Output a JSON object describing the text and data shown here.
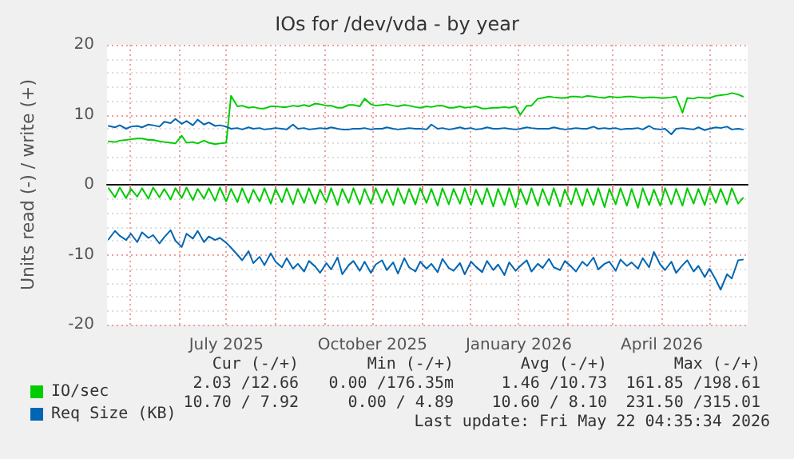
{
  "chart_data": {
    "type": "line",
    "title": "IOs for /dev/vda - by year",
    "ylabel": "Units read (-) / write (+)",
    "x": [
      "2025-04-18",
      "2025-04-22",
      "2025-04-25",
      "2025-04-29",
      "2025-05-02",
      "2025-05-06",
      "2025-05-09",
      "2025-05-13",
      "2025-05-16",
      "2025-05-20",
      "2025-05-23",
      "2025-05-27",
      "2025-05-30",
      "2025-06-03",
      "2025-06-06",
      "2025-06-10",
      "2025-06-13",
      "2025-06-17",
      "2025-06-20",
      "2025-06-24",
      "2025-06-27",
      "2025-07-01",
      "2025-07-04",
      "2025-07-08",
      "2025-07-11",
      "2025-07-15",
      "2025-07-18",
      "2025-07-22",
      "2025-07-25",
      "2025-07-29",
      "2025-08-01",
      "2025-08-05",
      "2025-08-08",
      "2025-08-12",
      "2025-08-15",
      "2025-08-19",
      "2025-08-22",
      "2025-08-26",
      "2025-08-29",
      "2025-09-02",
      "2025-09-05",
      "2025-09-09",
      "2025-09-12",
      "2025-09-16",
      "2025-09-19",
      "2025-09-23",
      "2025-09-26",
      "2025-09-30",
      "2025-10-03",
      "2025-10-07",
      "2025-10-10",
      "2025-10-14",
      "2025-10-17",
      "2025-10-21",
      "2025-10-24",
      "2025-10-28",
      "2025-10-31",
      "2025-11-04",
      "2025-11-07",
      "2025-11-11",
      "2025-11-14",
      "2025-11-18",
      "2025-11-21",
      "2025-11-25",
      "2025-11-28",
      "2025-12-02",
      "2025-12-05",
      "2025-12-09",
      "2025-12-12",
      "2025-12-16",
      "2025-12-19",
      "2025-12-23",
      "2025-12-26",
      "2025-12-30",
      "2026-01-02",
      "2026-01-06",
      "2026-01-09",
      "2026-01-13",
      "2026-01-16",
      "2026-01-20",
      "2026-01-23",
      "2026-01-27",
      "2026-01-30",
      "2026-02-03",
      "2026-02-06",
      "2026-02-10",
      "2026-02-13",
      "2026-02-17",
      "2026-02-20",
      "2026-02-24",
      "2026-02-27",
      "2026-03-03",
      "2026-03-06",
      "2026-03-10",
      "2026-03-13",
      "2026-03-17",
      "2026-03-20",
      "2026-03-24",
      "2026-03-27",
      "2026-03-31",
      "2026-04-03",
      "2026-04-07",
      "2026-04-10",
      "2026-04-14",
      "2026-04-17",
      "2026-04-21",
      "2026-04-24",
      "2026-04-28",
      "2026-05-01",
      "2026-05-05",
      "2026-05-08",
      "2026-05-12",
      "2026-05-15",
      "2026-05-19",
      "2026-05-22"
    ],
    "series": [
      {
        "color": "#00cc00",
        "values": [
          -0.5,
          -1.8,
          -0.4,
          -1.9,
          -0.6,
          -1.7,
          -0.5,
          -2.0,
          -0.4,
          -1.8,
          -0.6,
          -2.1,
          -0.5,
          -1.9,
          -0.4,
          -2.2,
          -0.6,
          -2.0,
          -0.5,
          -2.3,
          -0.4,
          -2.4,
          -0.6,
          -2.5,
          -0.5,
          -2.6,
          -0.7,
          -2.4,
          -0.5,
          -2.7,
          -0.6,
          -2.5,
          -0.5,
          -2.8,
          -0.6,
          -2.6,
          -0.5,
          -2.7,
          -0.7,
          -2.5,
          -0.5,
          -2.9,
          -0.6,
          -2.6,
          -0.5,
          -2.8,
          -0.6,
          -2.7,
          -0.5,
          -2.6,
          -0.7,
          -2.9,
          -0.5,
          -2.7,
          -0.6,
          -2.8,
          -0.5,
          -2.6,
          -0.6,
          -3.0,
          -0.5,
          -2.8,
          -0.6,
          -2.7,
          -0.5,
          -2.9,
          -0.7,
          -2.8,
          -0.5,
          -3.1,
          -0.6,
          -2.9,
          -0.5,
          -3.2,
          -0.6,
          -2.8,
          -0.5,
          -3.0,
          -0.6,
          -2.9,
          -0.5,
          -3.1,
          -0.7,
          -2.8,
          -0.5,
          -3.0,
          -0.6,
          -2.9,
          -0.5,
          -3.2,
          -0.6,
          -2.8,
          -0.5,
          -3.0,
          -0.6,
          -3.3,
          -0.5,
          -2.9,
          -0.7,
          -3.0,
          -0.5,
          -2.8,
          -0.6,
          -3.0,
          -0.5,
          -2.7,
          -0.6,
          -2.9,
          -0.5,
          -2.6,
          -0.6,
          -2.8,
          -0.5,
          -2.7,
          -1.9
        ]
      },
      {
        "name": "IO/sec",
        "color": "#00cc00",
        "values": [
          6.2,
          6.1,
          6.3,
          6.4,
          6.5,
          6.6,
          6.6,
          6.4,
          6.4,
          6.2,
          6.1,
          6.0,
          5.9,
          7.0,
          6.0,
          6.1,
          5.9,
          6.3,
          6.0,
          5.8,
          5.9,
          6.0,
          12.7,
          11.2,
          11.3,
          11.0,
          11.1,
          10.9,
          10.9,
          11.2,
          11.2,
          11.1,
          11.1,
          11.3,
          11.2,
          11.4,
          11.2,
          11.6,
          11.5,
          11.3,
          11.3,
          11.0,
          11.0,
          11.4,
          11.4,
          11.2,
          12.3,
          11.5,
          11.3,
          11.4,
          11.5,
          11.3,
          11.2,
          11.4,
          11.3,
          11.1,
          11.0,
          11.2,
          11.1,
          11.3,
          11.3,
          11.0,
          11.0,
          11.2,
          11.0,
          11.1,
          11.2,
          10.9,
          10.9,
          11.0,
          11.0,
          11.1,
          11.0,
          11.2,
          10.0,
          11.3,
          11.3,
          12.3,
          12.4,
          12.6,
          12.5,
          12.4,
          12.4,
          12.6,
          12.6,
          12.5,
          12.7,
          12.6,
          12.5,
          12.4,
          12.6,
          12.5,
          12.5,
          12.6,
          12.6,
          12.5,
          12.4,
          12.5,
          12.5,
          12.4,
          12.4,
          12.5,
          12.6,
          10.3,
          12.4,
          12.3,
          12.5,
          12.4,
          12.4,
          12.7,
          12.8,
          12.9,
          13.1,
          12.9,
          12.6
        ]
      },
      {
        "color": "#0066b3",
        "values": [
          -7.8,
          -6.6,
          -7.3,
          -7.9,
          -7.0,
          -8.2,
          -6.8,
          -7.6,
          -7.2,
          -8.4,
          -7.5,
          -6.5,
          -8.0,
          -8.9,
          -7.0,
          -7.7,
          -6.6,
          -8.2,
          -7.4,
          -7.9,
          -7.6,
          -8.3,
          -9.0,
          -10.0,
          -10.8,
          -9.5,
          -11.2,
          -10.3,
          -11.5,
          -9.8,
          -11.0,
          -11.8,
          -10.5,
          -12.0,
          -11.3,
          -12.4,
          -10.9,
          -11.7,
          -12.6,
          -11.2,
          -12.1,
          -10.4,
          -12.8,
          -11.5,
          -10.9,
          -12.3,
          -11.0,
          -12.6,
          -11.4,
          -10.8,
          -12.2,
          -11.1,
          -12.7,
          -10.5,
          -11.8,
          -12.4,
          -11.0,
          -12.0,
          -11.3,
          -12.5,
          -10.6,
          -11.9,
          -12.3,
          -11.2,
          -12.8,
          -11.0,
          -11.7,
          -12.5,
          -10.9,
          -12.2,
          -11.4,
          -12.9,
          -11.1,
          -12.3,
          -11.6,
          -10.8,
          -12.4,
          -11.3,
          -11.9,
          -10.6,
          -11.8,
          -12.2,
          -10.9,
          -11.7,
          -12.4,
          -11.0,
          -11.6,
          -10.4,
          -12.1,
          -11.3,
          -11.0,
          -12.3,
          -10.7,
          -11.6,
          -11.1,
          -12.0,
          -10.5,
          -11.8,
          -9.6,
          -11.4,
          -12.2,
          -11.0,
          -12.6,
          -11.5,
          -10.8,
          -12.4,
          -11.6,
          -13.2,
          -12.0,
          -13.6,
          -15.0,
          -12.8,
          -13.4,
          -10.8,
          -10.7
        ]
      },
      {
        "name": "Req Size (KB)",
        "color": "#0066b3",
        "values": [
          8.4,
          8.2,
          8.5,
          8.0,
          8.3,
          8.4,
          8.2,
          8.6,
          8.5,
          8.3,
          9.0,
          8.8,
          9.4,
          8.7,
          9.1,
          8.5,
          9.3,
          8.6,
          8.9,
          8.4,
          8.5,
          8.3,
          8.0,
          8.1,
          7.9,
          8.2,
          8.0,
          8.1,
          7.9,
          8.0,
          8.1,
          8.0,
          7.9,
          8.6,
          8.0,
          8.1,
          7.9,
          8.0,
          8.1,
          8.0,
          8.2,
          8.0,
          7.9,
          7.9,
          8.0,
          8.0,
          8.1,
          7.9,
          8.0,
          8.0,
          8.2,
          8.0,
          7.9,
          8.0,
          8.1,
          8.0,
          8.0,
          7.9,
          8.6,
          8.0,
          8.1,
          7.9,
          8.0,
          8.2,
          8.0,
          8.1,
          7.9,
          8.0,
          8.2,
          8.0,
          8.0,
          8.1,
          8.0,
          7.9,
          8.0,
          8.2,
          8.1,
          8.0,
          8.0,
          8.0,
          8.2,
          8.0,
          7.9,
          8.0,
          8.1,
          8.0,
          8.0,
          8.3,
          8.0,
          8.1,
          8.0,
          8.1,
          7.9,
          8.0,
          8.0,
          8.1,
          7.9,
          8.4,
          8.0,
          7.9,
          8.0,
          7.2,
          8.0,
          8.1,
          8.0,
          7.9,
          8.2,
          7.8,
          8.0,
          8.2,
          8.1,
          8.3,
          7.9,
          8.0,
          7.9
        ]
      }
    ],
    "xlim": [
      "2025-04-17",
      "2026-05-25"
    ],
    "xticks": [
      {
        "value": "2025-05-01",
        "label": null
      },
      {
        "value": "2025-06-01",
        "label": null
      },
      {
        "value": "2025-07-01",
        "label": "July 2025"
      },
      {
        "value": "2025-08-01",
        "label": null
      },
      {
        "value": "2025-09-01",
        "label": null
      },
      {
        "value": "2025-10-01",
        "label": "October 2025"
      },
      {
        "value": "2025-11-01",
        "label": null
      },
      {
        "value": "2025-12-01",
        "label": null
      },
      {
        "value": "2026-01-01",
        "label": "January 2026"
      },
      {
        "value": "2026-02-01",
        "label": null
      },
      {
        "value": "2026-03-01",
        "label": null
      },
      {
        "value": "2026-04-01",
        "label": "April 2026"
      },
      {
        "value": "2026-05-01",
        "label": null
      }
    ],
    "ylim": [
      -20,
      20
    ],
    "yticks": [
      -20,
      -10,
      0,
      10,
      20
    ],
    "grid": true,
    "legend": "bottom left",
    "marker": "none",
    "line_style": "solid",
    "annotations": [
      "Cur (-/+)",
      "Min (-/+)",
      "Avg (-/+)",
      "Max (-/+)",
      "2.03 /12.66",
      "0.00 /176.35m",
      "1.46 /10.73",
      "161.85 /198.61",
      "10.70 / 7.92",
      "0.00 / 4.89",
      "10.60 / 8.10",
      "231.50 /315.01",
      "Last update: Fri May 22 04:35:34 2026"
    ]
  }
}
